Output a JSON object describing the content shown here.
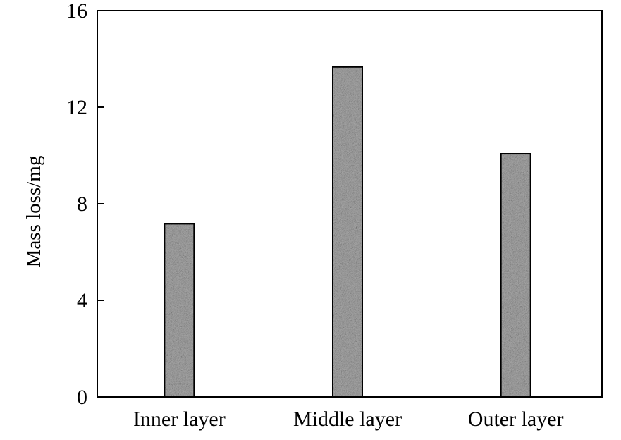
{
  "chart_data": {
    "type": "bar",
    "title": "",
    "xlabel": "",
    "ylabel": "Mass loss/mg",
    "categories": [
      "Inner layer",
      "Middle layer",
      "Outer layer"
    ],
    "values": [
      7.2,
      13.7,
      10.1
    ],
    "ylim": [
      0,
      16
    ],
    "yticks": [
      0,
      4,
      8,
      12,
      16
    ],
    "grid": false,
    "legend": "none",
    "colors": {
      "axis": "#000000",
      "bar_outline": "#000000",
      "bar_fill": "#a8a8a8"
    }
  }
}
